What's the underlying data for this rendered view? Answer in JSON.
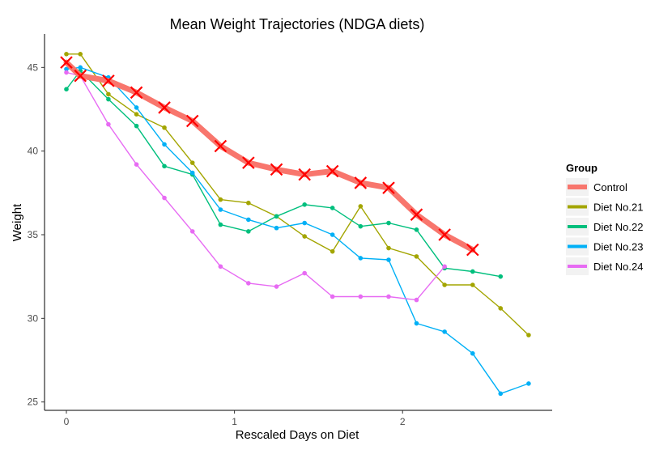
{
  "chart_data": {
    "type": "line",
    "title": "Mean Weight Trajectories (NDGA diets)",
    "xlabel": "Rescaled Days on Diet",
    "ylabel": "Weight",
    "xlim": [
      -0.13,
      2.89
    ],
    "ylim": [
      24.5,
      47.0
    ],
    "xticks": [
      0,
      1,
      2
    ],
    "yticks": [
      25,
      30,
      35,
      40,
      45
    ],
    "legend_title": "Group",
    "legend_position": "right",
    "series": [
      {
        "name": "Control",
        "color": "#F8766D",
        "marker": "x",
        "x": [
          0,
          0.083,
          0.25,
          0.417,
          0.583,
          0.75,
          0.917,
          1.083,
          1.25,
          1.417,
          1.583,
          1.75,
          1.917,
          2.083,
          2.25,
          2.417
        ],
        "y": [
          45.3,
          44.5,
          44.2,
          43.5,
          42.6,
          41.8,
          40.3,
          39.3,
          38.9,
          38.6,
          38.8,
          38.1,
          37.8,
          36.2,
          35.0,
          34.1
        ]
      },
      {
        "name": "Diet No.21",
        "color": "#A3A500",
        "marker": "dot",
        "x": [
          0,
          0.083,
          0.25,
          0.417,
          0.583,
          0.75,
          0.917,
          1.083,
          1.25,
          1.417,
          1.583,
          1.75,
          1.917,
          2.083,
          2.25,
          2.417,
          2.583,
          2.75
        ],
        "y": [
          45.8,
          45.8,
          43.4,
          42.2,
          41.4,
          39.3,
          37.1,
          36.9,
          36.1,
          34.9,
          34.0,
          36.7,
          34.2,
          33.7,
          32.0,
          32.0,
          30.6,
          29.0
        ]
      },
      {
        "name": "Diet No.22",
        "color": "#00BF7D",
        "marker": "dot",
        "x": [
          0,
          0.083,
          0.25,
          0.417,
          0.583,
          0.75,
          0.917,
          1.083,
          1.25,
          1.417,
          1.583,
          1.75,
          1.917,
          2.083,
          2.25,
          2.417,
          2.583
        ],
        "y": [
          43.7,
          44.8,
          43.1,
          41.5,
          39.1,
          38.6,
          35.6,
          35.2,
          36.1,
          36.8,
          36.6,
          35.5,
          35.7,
          35.3,
          33.0,
          32.8,
          32.5
        ]
      },
      {
        "name": "Diet No.23",
        "color": "#00B0F6",
        "marker": "dot",
        "x": [
          0,
          0.083,
          0.25,
          0.417,
          0.583,
          0.75,
          0.917,
          1.083,
          1.25,
          1.417,
          1.583,
          1.75,
          1.917,
          2.083,
          2.25,
          2.417,
          2.583,
          2.75
        ],
        "y": [
          44.9,
          45.0,
          44.4,
          42.6,
          40.4,
          38.7,
          36.5,
          35.9,
          35.4,
          35.7,
          35.0,
          33.6,
          33.5,
          29.7,
          29.2,
          27.9,
          25.5,
          26.1
        ]
      },
      {
        "name": "Diet No.24",
        "color": "#E76BF3",
        "marker": "dot",
        "x": [
          0,
          0.083,
          0.25,
          0.417,
          0.583,
          0.75,
          0.917,
          1.083,
          1.25,
          1.417,
          1.583,
          1.75,
          1.917,
          2.083,
          2.25
        ],
        "y": [
          44.7,
          44.5,
          41.6,
          39.2,
          37.2,
          35.2,
          33.1,
          32.1,
          31.9,
          32.7,
          31.3,
          31.3,
          31.3,
          31.1,
          33.1
        ]
      }
    ]
  }
}
